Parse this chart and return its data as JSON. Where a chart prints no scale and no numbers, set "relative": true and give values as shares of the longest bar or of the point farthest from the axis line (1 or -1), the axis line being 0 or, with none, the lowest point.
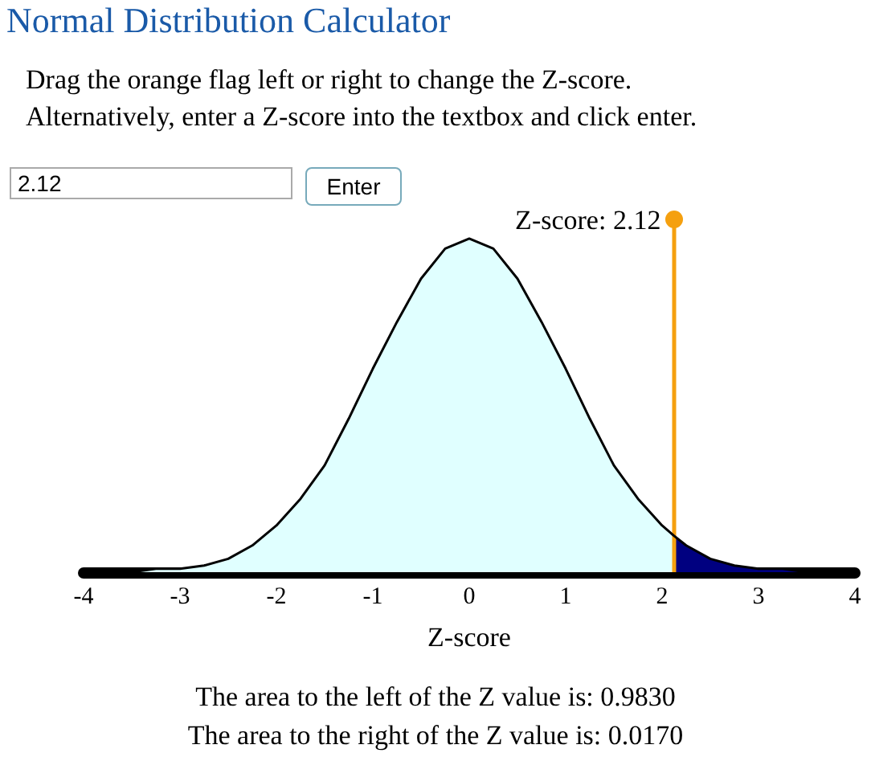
{
  "chart_data": {
    "type": "area",
    "title": "Normal Distribution Calculator",
    "subtitle": "Drag the orange flag left or right to change the Z-score.\nAlternatively, enter a Z-score into the textbox and click enter.",
    "xlabel": "Z-score",
    "relative": true,
    "xlim": [
      -4,
      4
    ],
    "xticks": [
      -4,
      -3,
      -2,
      -1,
      0,
      1,
      2,
      3,
      4
    ],
    "grid": false,
    "marker": "none",
    "series": [
      {
        "type": "line",
        "color": "#000000",
        "x": [
          -4,
          -3.75,
          -3.5,
          -3.25,
          -3,
          -2.75,
          -2.5,
          -2.25,
          -2,
          -1.75,
          -1.5,
          -1.25,
          -1,
          -0.75,
          -0.5,
          -0.25,
          0,
          0.25,
          0.5,
          0.75,
          1,
          1.25,
          1.5,
          1.75,
          2,
          2.12,
          2.25,
          2.5,
          2.75,
          3,
          3.25,
          3.5,
          3.75,
          4
        ],
        "values": [
          0,
          0,
          0,
          0.01,
          0.01,
          0.02,
          0.04,
          0.08,
          0.14,
          0.22,
          0.32,
          0.46,
          0.61,
          0.75,
          0.88,
          0.97,
          1,
          0.97,
          0.88,
          0.75,
          0.61,
          0.46,
          0.32,
          0.22,
          0.14,
          0.11,
          0.08,
          0.04,
          0.02,
          0.01,
          0.01,
          0,
          0,
          0
        ]
      },
      {
        "color": "#e0ffff",
        "x": [
          -4,
          -3.75,
          -3.5,
          -3.25,
          -3,
          -2.75,
          -2.5,
          -2.25,
          -2,
          -1.75,
          -1.5,
          -1.25,
          -1,
          -0.75,
          -0.5,
          -0.25,
          0,
          0.25,
          0.5,
          0.75,
          1,
          1.25,
          1.5,
          1.75,
          2,
          2.12
        ],
        "values": [
          0,
          0,
          0,
          0.01,
          0.01,
          0.02,
          0.04,
          0.08,
          0.14,
          0.22,
          0.32,
          0.46,
          0.61,
          0.75,
          0.88,
          0.97,
          1,
          0.97,
          0.88,
          0.75,
          0.61,
          0.46,
          0.32,
          0.22,
          0.14,
          0.11
        ]
      },
      {
        "color": "#000080",
        "x": [
          2.12,
          2.25,
          2.5,
          2.75,
          3,
          3.25,
          3.5,
          3.75,
          4
        ],
        "values": [
          0.11,
          0.08,
          0.04,
          0.02,
          0.01,
          0.01,
          0,
          0,
          0
        ]
      }
    ],
    "ref_lines": [
      {
        "axis": "x",
        "value": 2.12,
        "label": "Z-score: 2.12",
        "color": "#f5a00f"
      }
    ],
    "annotations": [
      "2.12",
      "Enter",
      "The area to the left of the Z value is: 0.9830",
      "The area to the right of the Z value is: 0.0170"
    ]
  }
}
